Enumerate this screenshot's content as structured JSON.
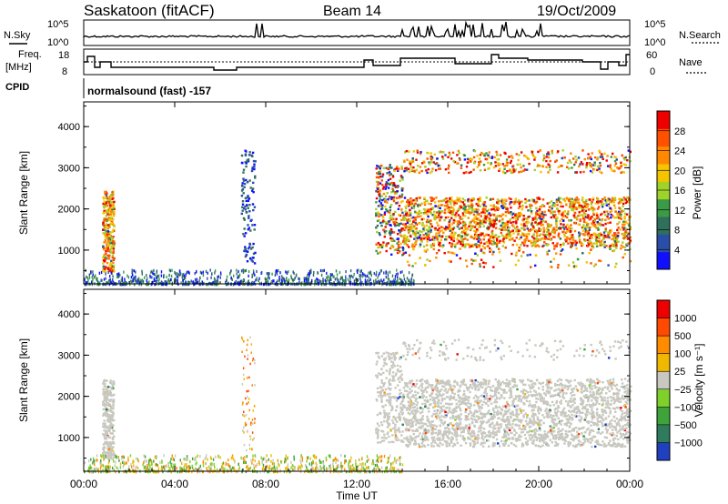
{
  "header": {
    "site": "Saskatoon (fitACF)",
    "beam": "Beam 14",
    "date": "19/Oct/2009"
  },
  "top_panels": {
    "nsky_label": "N.Sky",
    "nsky_ticks": [
      "10^5",
      "10^0"
    ],
    "nsearch_label": "N.Search",
    "nsearch_ticks": [
      "10^5",
      "10^0"
    ],
    "freq_label": "Freq.",
    "freq_unit": "[MHz]",
    "freq_ticks": [
      "18",
      "8"
    ],
    "nave_label": "Nave",
    "nave_ticks": [
      "60",
      "0"
    ],
    "cpid_label": "CPID",
    "cpid_text": "normalsound (fast) -157"
  },
  "chart_data": [
    {
      "type": "heatmap",
      "panel": "power",
      "xlabel": "",
      "ylabel": "Slant Range [km]",
      "x_range": [
        "00:00",
        "24:00"
      ],
      "ylim": [
        180,
        4600
      ],
      "y_ticks": [
        1000,
        2000,
        3000,
        4000
      ],
      "colorbar": {
        "label": "Power [dB]",
        "ticks": [
          4,
          8,
          12,
          16,
          20,
          24,
          28
        ],
        "colors": [
          "#1010ff",
          "#2a4ea8",
          "#2f6f5c",
          "#3a9a45",
          "#9fd32a",
          "#f5c400",
          "#ff8800",
          "#ff5000",
          "#ee0000"
        ]
      },
      "scatter_regions": [
        {
          "t_start": 0.8,
          "t_end": 1.3,
          "range_min": 500,
          "range_max": 2450,
          "level": "high"
        },
        {
          "t_start": 6.9,
          "t_end": 7.5,
          "range_min": 700,
          "range_max": 3500,
          "level": "low"
        },
        {
          "t_start": 12.8,
          "t_end": 14.0,
          "range_min": 900,
          "range_max": 3100,
          "level": "mixed"
        },
        {
          "t_start": 14.0,
          "t_end": 24.0,
          "range_min": 600,
          "range_max": 3500,
          "level": "high"
        }
      ]
    },
    {
      "type": "heatmap",
      "panel": "velocity",
      "xlabel": "Time UT",
      "ylabel": "Slant Range [km]",
      "x_range": [
        "00:00",
        "24:00"
      ],
      "ylim": [
        180,
        4600
      ],
      "y_ticks": [
        1000,
        2000,
        3000,
        4000
      ],
      "x_ticks": [
        "00:00",
        "04:00",
        "08:00",
        "12:00",
        "16:00",
        "20:00",
        "00:00"
      ],
      "colorbar": {
        "label": "Velocity [m s⁻¹]",
        "ticks": [
          "1000",
          "500",
          "100",
          "25",
          "−25",
          "−100",
          "−500",
          "−1000"
        ],
        "colors": [
          "#2040c0",
          "#2e7b5e",
          "#3da33a",
          "#7fd02a",
          "#c8c8c0",
          "#f0b800",
          "#ff8c00",
          "#ff4a00",
          "#ee0000"
        ]
      },
      "scatter_regions": [
        {
          "t_start": 0.8,
          "t_end": 1.3,
          "range_min": 500,
          "range_max": 2450,
          "level": "ground"
        },
        {
          "t_start": 12.8,
          "t_end": 14.0,
          "range_min": 900,
          "range_max": 3100,
          "level": "ground"
        },
        {
          "t_start": 14.0,
          "t_end": 24.0,
          "range_min": 600,
          "range_max": 2500,
          "level": "ground"
        }
      ]
    }
  ],
  "colors": {
    "axis": "#000000",
    "ground_scatter": "#c8c8c0"
  }
}
